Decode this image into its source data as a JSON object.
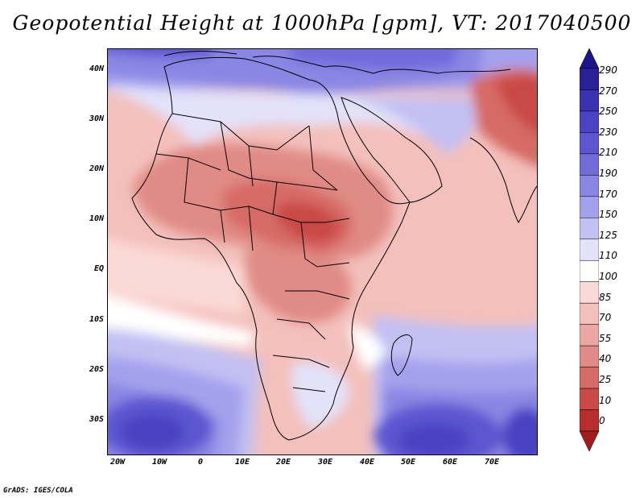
{
  "title": "Geopotential Height at 1000hPa [gpm], VT: 2017040500",
  "footer": "GrADS: IGES/COLA",
  "map": {
    "region": "Africa",
    "projection": "lat-lon",
    "lon_range": [
      -23,
      80
    ],
    "lat_range": [
      -37,
      45
    ],
    "y_ticks": [
      "40N",
      "30N",
      "20N",
      "10N",
      "EQ",
      "10S",
      "20S",
      "30S"
    ],
    "x_ticks": [
      "20W",
      "10W",
      "0",
      "10E",
      "20E",
      "30E",
      "40E",
      "50E",
      "60E",
      "70E"
    ]
  },
  "colorbar": {
    "labels": [
      "290",
      "270",
      "250",
      "230",
      "210",
      "190",
      "170",
      "150",
      "125",
      "110",
      "100",
      "85",
      "70",
      "55",
      "40",
      "25",
      "10",
      "0"
    ],
    "colors": {
      "top_arrow": "#1c148c",
      "b270_290": "#2a2199",
      "b250_270": "#3b32b0",
      "b230_250": "#4a43c3",
      "b210_230": "#5c56d0",
      "b190_210": "#716cdb",
      "b170_190": "#8a86e4",
      "b150_170": "#a4a1ec",
      "b125_150": "#c2c0f3",
      "b110_125": "#e3e2fa",
      "b100_110": "#ffffff",
      "b85_100": "#fad9d6",
      "b70_85": "#f3c0bc",
      "b55_70": "#eba8a3",
      "b40_55": "#e08b85",
      "b25_40": "#d66a65",
      "b10_25": "#c94a46",
      "b0_10": "#b82e2c",
      "bottom_arrow": "#a11c1b"
    }
  }
}
